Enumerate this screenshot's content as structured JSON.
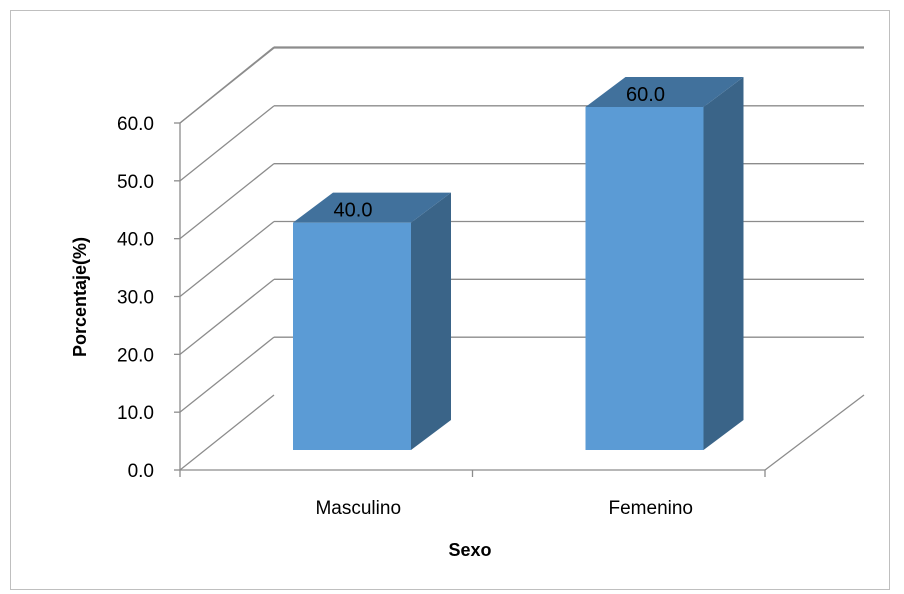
{
  "chart_data": {
    "type": "bar",
    "style": "3d-column",
    "categories": [
      "Masculino",
      "Femenino"
    ],
    "values": [
      40.0,
      60.0
    ],
    "data_labels": [
      "40.0",
      "60.0"
    ],
    "title": "",
    "xlabel": "Sexo",
    "ylabel": "Porcentaje(%)",
    "ylim": [
      0,
      60
    ],
    "yticks": [
      "0.0",
      "10.0",
      "20.0",
      "30.0",
      "40.0",
      "50.0",
      "60.0"
    ],
    "grid": true,
    "legend": "none",
    "colors": {
      "bar_front": "#5b9bd5",
      "bar_side": "#3a6488",
      "bar_top": "#41719c",
      "grid": "#8c8c8c"
    }
  }
}
